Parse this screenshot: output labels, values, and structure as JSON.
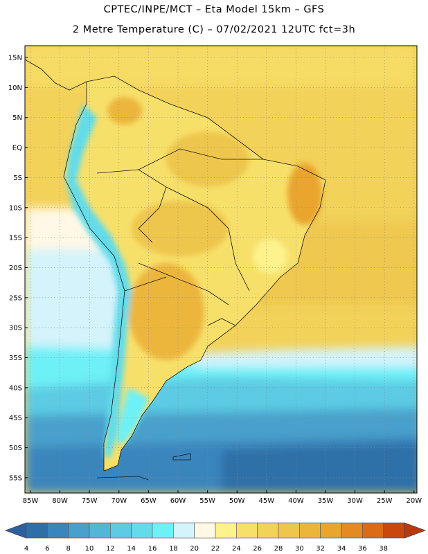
{
  "title": {
    "line1": "CPTEC/INPE/MCT –  Eta Model 15km – GFS",
    "line2": "2 Metre Temperature (C) – 07/02/2021 12UTC fct=3h"
  },
  "lat_labels": [
    "15N",
    "10N",
    "5N",
    "EQ",
    "5S",
    "10S",
    "15S",
    "20S",
    "25S",
    "30S",
    "35S",
    "40S",
    "45S",
    "50S",
    "55S"
  ],
  "lon_labels": [
    "85W",
    "80W",
    "75W",
    "70W",
    "65W",
    "60W",
    "55W",
    "50W",
    "45W",
    "40W",
    "35W",
    "30W",
    "25W",
    "20W"
  ],
  "colorbar": {
    "ticks": [
      "4",
      "6",
      "8",
      "10",
      "12",
      "14",
      "16",
      "18",
      "20",
      "22",
      "24",
      "26",
      "28",
      "30",
      "32",
      "34",
      "36",
      "38"
    ],
    "colors": [
      "#2f6fa8",
      "#3a85bd",
      "#48a0cc",
      "#52b6d9",
      "#5ccbe3",
      "#62dcea",
      "#6ef0f7",
      "#d4f3fb",
      "#fff8e6",
      "#fdf28c",
      "#f7e06a",
      "#f3d25a",
      "#eec64c",
      "#ecb63c",
      "#e9a52e",
      "#e58a20",
      "#dd6a14",
      "#c8480e"
    ],
    "low_color": "#2e5fa0",
    "high_color": "#b83a0c"
  }
}
